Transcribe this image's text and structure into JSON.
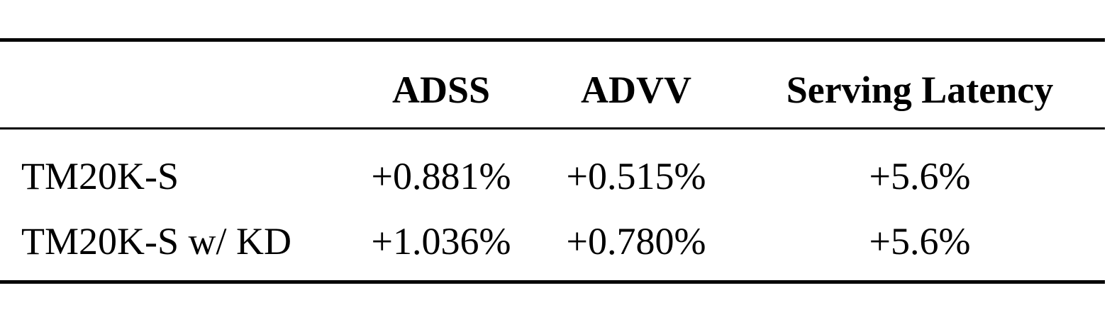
{
  "table": {
    "header": [
      null,
      "ADSS",
      "ADVV",
      "Serving Latency"
    ],
    "rows": [
      [
        "TM20K-S",
        "+0.881%",
        "+0.515%",
        "+5.6%"
      ],
      [
        "TM20K-S w/ KD",
        "+1.036%",
        "+0.780%",
        "+5.6%"
      ]
    ]
  }
}
